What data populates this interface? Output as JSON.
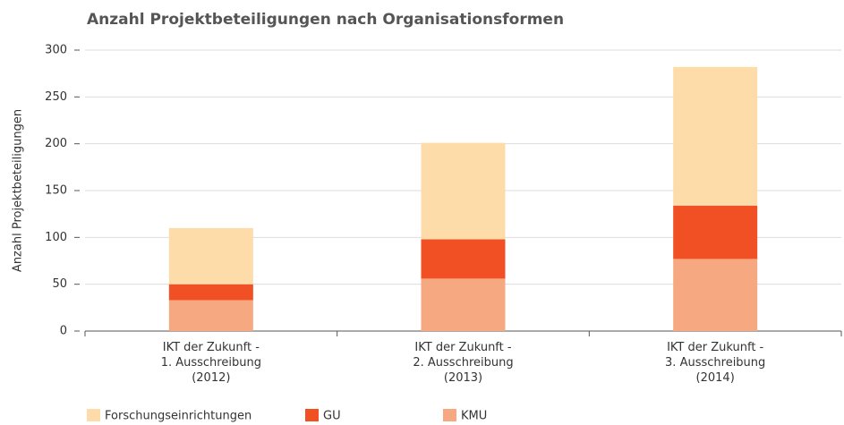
{
  "chart_data": {
    "type": "stacked_bar",
    "title": "Anzahl Projektbeteiligungen nach Organisationsformen",
    "y_label": "Anzahl Projektbeteiligungen",
    "categories": [
      [
        "IKT der Zukunft -",
        "1. Ausschreibung",
        "(2012)"
      ],
      [
        "IKT der Zukunft -",
        "2. Ausschreibung",
        "(2013)"
      ],
      [
        "IKT der Zukunft -",
        "3. Ausschreibung",
        "(2014)"
      ]
    ],
    "series": [
      {
        "name": "Forschungseinrichtungen",
        "color": "#fddcaa",
        "values": [
          60,
          103,
          148
        ]
      },
      {
        "name": "GU",
        "color": "#f05023",
        "values": [
          17,
          42,
          57
        ]
      },
      {
        "name": "KMU",
        "color": "#f6a880",
        "values": [
          33,
          56,
          77
        ]
      }
    ],
    "ylim": [
      0,
      300
    ],
    "yticks": [
      0,
      50,
      100,
      150,
      200,
      250,
      300
    ],
    "grid": true,
    "legend": "bottom"
  }
}
